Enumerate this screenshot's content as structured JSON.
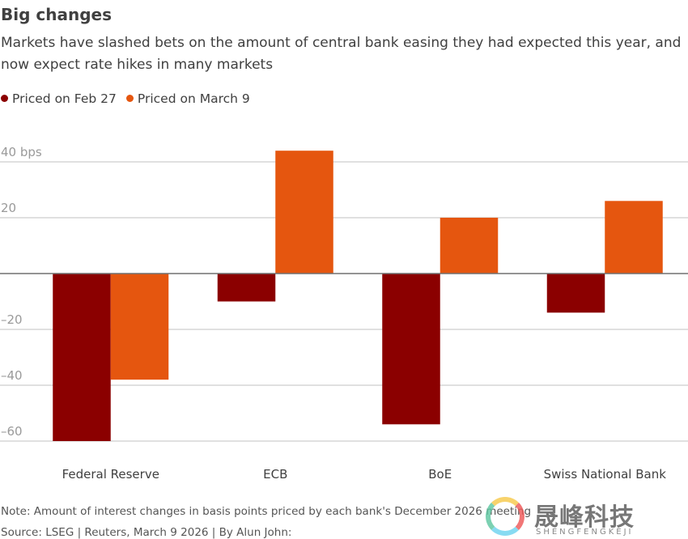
{
  "title": "Big changes",
  "subtitle": "Markets have slashed bets on the amount of central bank easing they had expected this year, and now expect rate hikes in many markets",
  "note": "Note: Amount of interest changes in basis points priced by each bank's December 2026 meeting",
  "source": "Source: LSEG | Reuters, March 9 2026 | By Alun John:",
  "watermark": {
    "cn": "晟峰科技",
    "en": "SHENGFENGKEJI"
  },
  "chart_data": {
    "type": "bar",
    "title": "Big changes",
    "categories": [
      "Federal Reserve",
      "ECB",
      "BoE",
      "Swiss National Bank"
    ],
    "series": [
      {
        "name": "Priced on Feb 27",
        "color": "#8b0000",
        "values": [
          -60,
          -10,
          -54,
          -14
        ]
      },
      {
        "name": "Priced on March 9",
        "color": "#e5560f",
        "values": [
          -38,
          44,
          20,
          26
        ]
      }
    ],
    "yticks": [
      40,
      20,
      -20,
      -40,
      -60
    ],
    "ytick_labels": [
      "40 bps",
      "20",
      "–20",
      "–40",
      "–60"
    ],
    "ylim": [
      -60,
      40
    ],
    "grid": true,
    "legend": "top-left"
  }
}
